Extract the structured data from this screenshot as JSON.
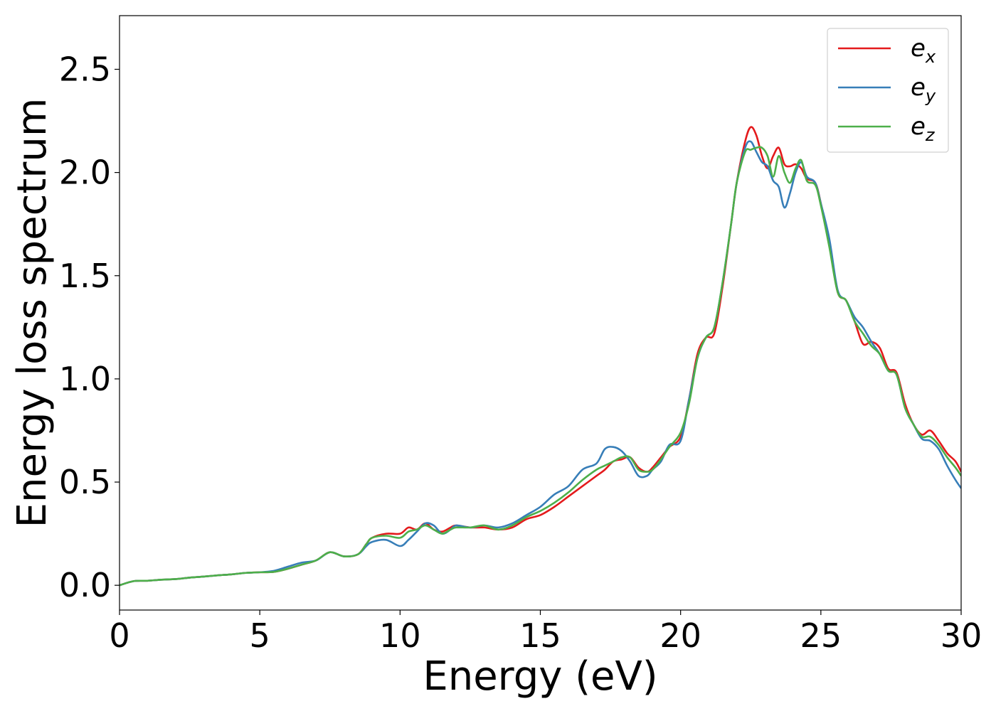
{
  "chart_data": {
    "type": "line",
    "xlabel": "Energy (eV)",
    "ylabel": "Energy loss spectrum",
    "xlim": [
      0,
      30
    ],
    "ylim": [
      -0.12,
      2.76
    ],
    "xticks": [
      "0",
      "5",
      "10",
      "15",
      "20",
      "25",
      "30"
    ],
    "yticks": [
      "0.0",
      "0.5",
      "1.0",
      "1.5",
      "2.0",
      "2.5"
    ],
    "grid": false,
    "legend_position": "top-right",
    "series": [
      {
        "name": "e_x",
        "label_base": "e",
        "label_sub": "x",
        "color": "#e41a1c",
        "x": [
          0,
          0.5,
          1,
          1.5,
          2,
          2.5,
          3,
          3.5,
          4,
          4.5,
          5,
          5.5,
          6,
          6.5,
          7,
          7.5,
          8,
          8.5,
          8.8,
          9,
          9.5,
          10,
          10.3,
          10.6,
          10.9,
          11.2,
          11.5,
          11.8,
          12,
          12.5,
          13,
          13.5,
          14,
          14.5,
          15,
          15.5,
          16,
          16.5,
          17,
          17.3,
          17.6,
          17.9,
          18.2,
          18.5,
          18.8,
          19,
          19.3,
          19.6,
          20,
          20.3,
          20.6,
          20.9,
          21.2,
          21.5,
          21.8,
          22,
          22.3,
          22.5,
          22.7,
          22.9,
          23.1,
          23.3,
          23.5,
          23.7,
          23.9,
          24.1,
          24.3,
          24.5,
          24.8,
          25,
          25.3,
          25.6,
          25.9,
          26.2,
          26.5,
          26.8,
          27.1,
          27.4,
          27.7,
          28,
          28.3,
          28.6,
          28.9,
          29.2,
          29.5,
          29.8,
          30
        ],
        "y": [
          0,
          0.02,
          0.022,
          0.027,
          0.03,
          0.037,
          0.042,
          0.048,
          0.053,
          0.06,
          0.063,
          0.065,
          0.08,
          0.1,
          0.12,
          0.16,
          0.14,
          0.15,
          0.2,
          0.23,
          0.25,
          0.25,
          0.28,
          0.27,
          0.3,
          0.27,
          0.26,
          0.28,
          0.29,
          0.28,
          0.28,
          0.27,
          0.28,
          0.32,
          0.34,
          0.38,
          0.43,
          0.48,
          0.53,
          0.56,
          0.6,
          0.61,
          0.62,
          0.57,
          0.55,
          0.57,
          0.62,
          0.67,
          0.72,
          0.9,
          1.12,
          1.2,
          1.22,
          1.45,
          1.75,
          1.95,
          2.15,
          2.22,
          2.18,
          2.08,
          2.02,
          2.08,
          2.12,
          2.04,
          2.03,
          2.04,
          2.02,
          1.97,
          1.95,
          1.85,
          1.65,
          1.42,
          1.38,
          1.28,
          1.17,
          1.18,
          1.15,
          1.05,
          1.03,
          0.88,
          0.78,
          0.73,
          0.75,
          0.7,
          0.64,
          0.6,
          0.55
        ]
      },
      {
        "name": "e_y",
        "label_base": "e",
        "label_sub": "y",
        "color": "#377eb8",
        "x": [
          0,
          0.5,
          1,
          1.5,
          2,
          2.5,
          3,
          3.5,
          4,
          4.5,
          5,
          5.5,
          6,
          6.5,
          7,
          7.5,
          8,
          8.5,
          8.8,
          9,
          9.5,
          10,
          10.3,
          10.6,
          10.9,
          11.2,
          11.5,
          11.8,
          12,
          12.5,
          13,
          13.5,
          14,
          14.5,
          15,
          15.5,
          16,
          16.5,
          17,
          17.3,
          17.6,
          17.9,
          18.2,
          18.5,
          18.8,
          19,
          19.3,
          19.6,
          20,
          20.3,
          20.6,
          20.9,
          21.2,
          21.5,
          21.8,
          22,
          22.3,
          22.5,
          22.7,
          22.9,
          23.1,
          23.3,
          23.5,
          23.7,
          23.9,
          24.1,
          24.3,
          24.5,
          24.8,
          25,
          25.3,
          25.6,
          25.9,
          26.2,
          26.5,
          26.8,
          27.1,
          27.4,
          27.7,
          28,
          28.3,
          28.6,
          28.9,
          29.2,
          29.5,
          29.8,
          30
        ],
        "y": [
          0,
          0.02,
          0.022,
          0.027,
          0.03,
          0.037,
          0.042,
          0.048,
          0.053,
          0.06,
          0.063,
          0.07,
          0.09,
          0.11,
          0.12,
          0.16,
          0.14,
          0.15,
          0.19,
          0.21,
          0.22,
          0.19,
          0.22,
          0.26,
          0.3,
          0.29,
          0.25,
          0.27,
          0.29,
          0.28,
          0.29,
          0.28,
          0.3,
          0.34,
          0.38,
          0.44,
          0.48,
          0.56,
          0.59,
          0.66,
          0.67,
          0.65,
          0.6,
          0.53,
          0.53,
          0.56,
          0.6,
          0.68,
          0.7,
          0.9,
          1.1,
          1.2,
          1.25,
          1.47,
          1.75,
          1.95,
          2.12,
          2.15,
          2.1,
          2.05,
          2.03,
          1.96,
          1.93,
          1.83,
          1.9,
          2.0,
          2.05,
          1.98,
          1.95,
          1.85,
          1.68,
          1.43,
          1.38,
          1.3,
          1.25,
          1.18,
          1.12,
          1.04,
          1.02,
          0.86,
          0.78,
          0.71,
          0.7,
          0.66,
          0.58,
          0.51,
          0.47
        ]
      },
      {
        "name": "e_z",
        "label_base": "e",
        "label_sub": "z",
        "color": "#4daf4a",
        "x": [
          0,
          0.5,
          1,
          1.5,
          2,
          2.5,
          3,
          3.5,
          4,
          4.5,
          5,
          5.5,
          6,
          6.5,
          7,
          7.5,
          8,
          8.5,
          8.8,
          9,
          9.5,
          10,
          10.3,
          10.6,
          10.9,
          11.2,
          11.5,
          11.8,
          12,
          12.5,
          13,
          13.5,
          14,
          14.5,
          15,
          15.5,
          16,
          16.5,
          17,
          17.3,
          17.6,
          17.9,
          18.2,
          18.5,
          18.8,
          19,
          19.3,
          19.6,
          20,
          20.3,
          20.6,
          20.9,
          21.2,
          21.5,
          21.8,
          22,
          22.3,
          22.5,
          22.7,
          22.9,
          23.1,
          23.3,
          23.5,
          23.7,
          23.9,
          24.1,
          24.3,
          24.5,
          24.8,
          25,
          25.3,
          25.6,
          25.9,
          26.2,
          26.5,
          26.8,
          27.1,
          27.4,
          27.7,
          28,
          28.3,
          28.6,
          28.9,
          29.2,
          29.5,
          29.8,
          30
        ],
        "y": [
          0,
          0.02,
          0.022,
          0.027,
          0.03,
          0.037,
          0.042,
          0.048,
          0.053,
          0.06,
          0.063,
          0.065,
          0.08,
          0.1,
          0.12,
          0.16,
          0.14,
          0.15,
          0.2,
          0.23,
          0.24,
          0.23,
          0.26,
          0.27,
          0.29,
          0.27,
          0.25,
          0.27,
          0.28,
          0.28,
          0.29,
          0.27,
          0.29,
          0.33,
          0.36,
          0.4,
          0.45,
          0.51,
          0.56,
          0.58,
          0.6,
          0.62,
          0.62,
          0.56,
          0.55,
          0.56,
          0.61,
          0.67,
          0.74,
          0.88,
          1.1,
          1.2,
          1.25,
          1.47,
          1.75,
          1.95,
          2.1,
          2.11,
          2.12,
          2.12,
          2.08,
          1.98,
          2.08,
          2.0,
          1.95,
          2.02,
          2.06,
          1.96,
          1.94,
          1.84,
          1.64,
          1.42,
          1.38,
          1.28,
          1.22,
          1.16,
          1.12,
          1.04,
          1.02,
          0.86,
          0.78,
          0.72,
          0.72,
          0.68,
          0.62,
          0.57,
          0.53
        ]
      }
    ]
  }
}
